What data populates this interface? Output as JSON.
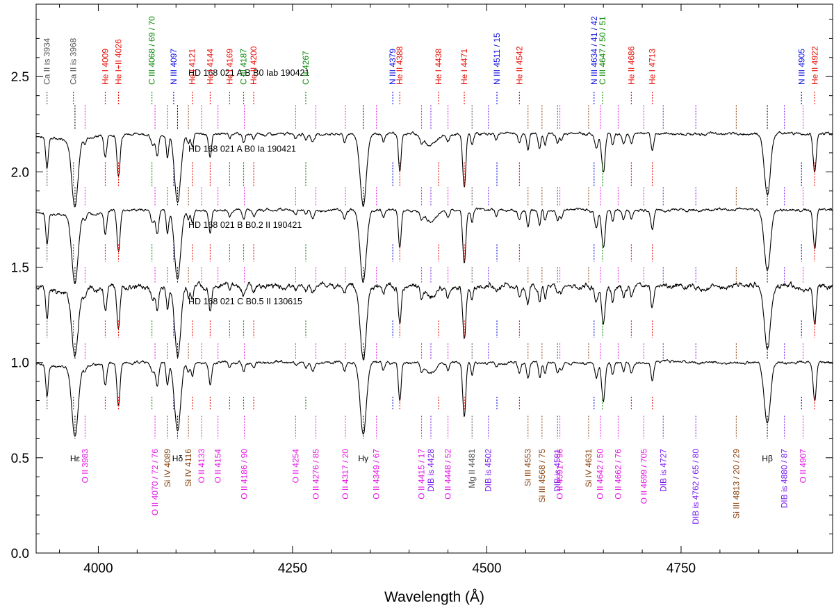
{
  "chart_data": {
    "type": "line",
    "xlabel": "Wavelength (Å)",
    "ylabel": "",
    "xlim": [
      3920,
      4945
    ],
    "ylim": [
      0.0,
      2.88
    ],
    "xticks": [
      4000,
      4250,
      4500,
      4750
    ],
    "xtick_labels": [
      "4000",
      "4250",
      "4500",
      "4750"
    ],
    "yticks": [
      0.0,
      0.5,
      1.0,
      1.5,
      2.0,
      2.5
    ],
    "ytick_labels": [
      "0.0",
      "0.5",
      "1.0",
      "1.5",
      "2.0",
      "2.5"
    ],
    "grid": false,
    "colors": {
      "red": "#e8140c",
      "green": "#0a8a0a",
      "blue": "#1212e0",
      "magenta": "#e619e6",
      "brown": "#8b4513",
      "purple": "#7a1ef0",
      "gray": "#555555",
      "black": "#000000",
      "spectrum": "#000000"
    },
    "series": [
      {
        "name": "HD 168 021 A,B   B0 Iab 190421",
        "offset": 1.2
      },
      {
        "name": "HD 168 021 A   B0 Ia 190421",
        "offset": 0.8
      },
      {
        "name": "HD 168 021 B   B0.2 II 190421",
        "offset": 0.4
      },
      {
        "name": "HD 168 021 C   B0.5 II 130615",
        "offset": 0.0
      }
    ],
    "top_lines": [
      {
        "label": "Ca II is 3934",
        "x": 3934,
        "color": "gray"
      },
      {
        "label": "Ca II is 3968",
        "x": 3968,
        "color": "gray"
      },
      {
        "label": "He I 4009",
        "x": 4009,
        "color": "red"
      },
      {
        "label": "He I+II 4026",
        "x": 4026,
        "color": "red"
      },
      {
        "label": "C III 4068 / 69 / 70",
        "x": 4069,
        "color": "green"
      },
      {
        "label": "N III 4097",
        "x": 4097,
        "color": "blue"
      },
      {
        "label": "He I 4121",
        "x": 4121,
        "color": "red"
      },
      {
        "label": "He I 4144",
        "x": 4144,
        "color": "red"
      },
      {
        "label": "He I 4169",
        "x": 4169,
        "color": "red"
      },
      {
        "label": "C III 4187",
        "x": 4187,
        "color": "green"
      },
      {
        "label": "He II 4200",
        "x": 4200,
        "color": "red"
      },
      {
        "label": "C II 4267",
        "x": 4267,
        "color": "green"
      },
      {
        "label": "N III 4379",
        "x": 4379,
        "color": "blue"
      },
      {
        "label": "He II 4388",
        "x": 4388,
        "color": "red"
      },
      {
        "label": "He I 4438",
        "x": 4438,
        "color": "red"
      },
      {
        "label": "He I 4471",
        "x": 4471,
        "color": "red"
      },
      {
        "label": "N III 4511 / 15",
        "x": 4513,
        "color": "blue"
      },
      {
        "label": "He II 4542",
        "x": 4542,
        "color": "red"
      },
      {
        "label": "N III 4634 / 41 / 42",
        "x": 4638,
        "color": "blue"
      },
      {
        "label": "C III 4647 / 50 / 51",
        "x": 4649,
        "color": "green"
      },
      {
        "label": "He II 4686",
        "x": 4686,
        "color": "red"
      },
      {
        "label": "He I 4713",
        "x": 4713,
        "color": "red"
      },
      {
        "label": "N III 4905",
        "x": 4905,
        "color": "blue"
      },
      {
        "label": "He II 4922",
        "x": 4922,
        "color": "red"
      }
    ],
    "bottom_lines": [
      {
        "label": "Hε",
        "x": 3970,
        "color": "black"
      },
      {
        "label": "O II 3983",
        "x": 3983,
        "color": "magenta"
      },
      {
        "label": "O II 4070 / 72 / 76",
        "x": 4073,
        "color": "magenta"
      },
      {
        "label": "Si IV 4089",
        "x": 4089,
        "color": "brown"
      },
      {
        "label": "Hδ",
        "x": 4102,
        "color": "black"
      },
      {
        "label": "Si IV 4116",
        "x": 4116,
        "color": "brown"
      },
      {
        "label": "O II 4133",
        "x": 4133,
        "color": "magenta"
      },
      {
        "label": "O II 4154",
        "x": 4154,
        "color": "magenta"
      },
      {
        "label": "O II 4186 / 90",
        "x": 4188,
        "color": "magenta"
      },
      {
        "label": "O II 4254",
        "x": 4254,
        "color": "magenta"
      },
      {
        "label": "O II 4276 / 85",
        "x": 4280,
        "color": "magenta"
      },
      {
        "label": "O II 4317 / 20",
        "x": 4318,
        "color": "magenta"
      },
      {
        "label": "Hγ",
        "x": 4341,
        "color": "black"
      },
      {
        "label": "O II 4349 / 67",
        "x": 4358,
        "color": "magenta"
      },
      {
        "label": "O II 4415 / 17",
        "x": 4416,
        "color": "magenta"
      },
      {
        "label": "DIB is 4428",
        "x": 4428,
        "color": "purple"
      },
      {
        "label": "O II 4448 / 52",
        "x": 4450,
        "color": "magenta"
      },
      {
        "label": "Mg II 4481",
        "x": 4481,
        "color": "gray"
      },
      {
        "label": "DIB is 4502",
        "x": 4502,
        "color": "purple"
      },
      {
        "label": "Si III 4553",
        "x": 4553,
        "color": "brown"
      },
      {
        "label": "Si III 4568 / 75",
        "x": 4571,
        "color": "brown"
      },
      {
        "label": "DIB is 4591",
        "x": 4591,
        "color": "purple"
      },
      {
        "label": "O II 4591 / 96",
        "x": 4594,
        "color": "magenta"
      },
      {
        "label": "Si IV 4631",
        "x": 4631,
        "color": "brown"
      },
      {
        "label": "O II 4642 / 50",
        "x": 4646,
        "color": "magenta"
      },
      {
        "label": "O II 4662 / 76",
        "x": 4669,
        "color": "magenta"
      },
      {
        "label": "O II 4699 / 705",
        "x": 4702,
        "color": "magenta"
      },
      {
        "label": "DIB is 4727",
        "x": 4727,
        "color": "purple"
      },
      {
        "label": "DIB is 4762 / 65 / 80",
        "x": 4769,
        "color": "purple"
      },
      {
        "label": "Si III 4813 / 20 / 29",
        "x": 4821,
        "color": "brown"
      },
      {
        "label": "Hβ",
        "x": 4861,
        "color": "black"
      },
      {
        "label": "DIB is 4880 / 87",
        "x": 4883,
        "color": "purple"
      },
      {
        "label": "O II 4907",
        "x": 4907,
        "color": "magenta"
      }
    ],
    "absorption_lines": [
      {
        "x": 3934,
        "depth": 0.16,
        "width": 1.6
      },
      {
        "x": 3970,
        "depth": 0.36,
        "width": 4.0
      },
      {
        "x": 3983,
        "depth": 0.03,
        "width": 1.5
      },
      {
        "x": 4009,
        "depth": 0.12,
        "width": 1.8
      },
      {
        "x": 4026,
        "depth": 0.22,
        "width": 2.0
      },
      {
        "x": 4070,
        "depth": 0.06,
        "width": 2.5
      },
      {
        "x": 4076,
        "depth": 0.12,
        "width": 1.8
      },
      {
        "x": 4089,
        "depth": 0.12,
        "width": 1.6
      },
      {
        "x": 4102,
        "depth": 0.36,
        "width": 4.0
      },
      {
        "x": 4116,
        "depth": 0.05,
        "width": 1.6
      },
      {
        "x": 4121,
        "depth": 0.07,
        "width": 1.6
      },
      {
        "x": 4144,
        "depth": 0.12,
        "width": 1.8
      },
      {
        "x": 4169,
        "depth": 0.03,
        "width": 1.5
      },
      {
        "x": 4187,
        "depth": 0.05,
        "width": 1.8
      },
      {
        "x": 4200,
        "depth": 0.03,
        "width": 1.8
      },
      {
        "x": 4254,
        "depth": 0.02,
        "width": 1.5
      },
      {
        "x": 4267,
        "depth": 0.03,
        "width": 1.6
      },
      {
        "x": 4276,
        "depth": 0.04,
        "width": 2.0
      },
      {
        "x": 4317,
        "depth": 0.04,
        "width": 1.6
      },
      {
        "x": 4341,
        "depth": 0.38,
        "width": 4.0
      },
      {
        "x": 4367,
        "depth": 0.04,
        "width": 1.6
      },
      {
        "x": 4388,
        "depth": 0.2,
        "width": 1.8
      },
      {
        "x": 4416,
        "depth": 0.04,
        "width": 1.8
      },
      {
        "x": 4428,
        "depth": 0.06,
        "width": 7.0
      },
      {
        "x": 4450,
        "depth": 0.04,
        "width": 1.8
      },
      {
        "x": 4471,
        "depth": 0.28,
        "width": 2.0
      },
      {
        "x": 4481,
        "depth": 0.06,
        "width": 1.6
      },
      {
        "x": 4512,
        "depth": 0.03,
        "width": 1.6
      },
      {
        "x": 4542,
        "depth": 0.05,
        "width": 1.8
      },
      {
        "x": 4553,
        "depth": 0.09,
        "width": 1.6
      },
      {
        "x": 4568,
        "depth": 0.08,
        "width": 1.6
      },
      {
        "x": 4575,
        "depth": 0.06,
        "width": 1.6
      },
      {
        "x": 4591,
        "depth": 0.05,
        "width": 1.6
      },
      {
        "x": 4596,
        "depth": 0.04,
        "width": 1.6
      },
      {
        "x": 4641,
        "depth": 0.08,
        "width": 2.0
      },
      {
        "x": 4650,
        "depth": 0.2,
        "width": 2.2
      },
      {
        "x": 4662,
        "depth": 0.06,
        "width": 1.6
      },
      {
        "x": 4676,
        "depth": 0.05,
        "width": 1.6
      },
      {
        "x": 4686,
        "depth": 0.05,
        "width": 1.8
      },
      {
        "x": 4713,
        "depth": 0.1,
        "width": 1.8
      },
      {
        "x": 4861,
        "depth": 0.32,
        "width": 4.0
      },
      {
        "x": 4922,
        "depth": 0.2,
        "width": 2.0
      }
    ]
  }
}
